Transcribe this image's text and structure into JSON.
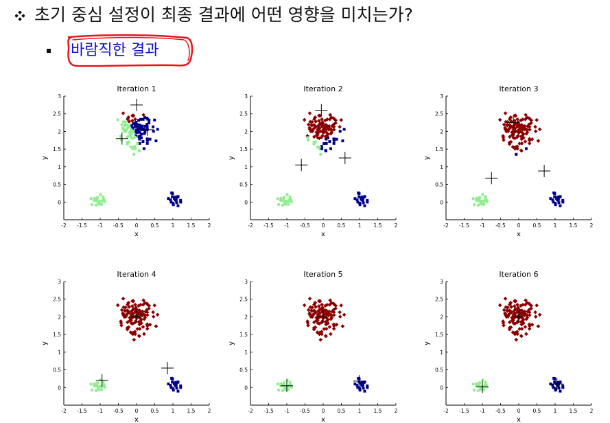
{
  "slide": {
    "heading": "초기 중심 설정이 최종 결과에 어떤 영향을 미치는가?",
    "subheading": "바람직한 결과",
    "bullet_icon": "diamond-cluster-icon"
  },
  "colors": {
    "red": "#8b0000",
    "blue": "#00008b",
    "green": "#90ee90",
    "centroid": "#000000",
    "highlight": "#e8141c",
    "subtext": "#1212cc"
  },
  "chart_data": [
    {
      "type": "scatter",
      "title": "Iteration 1",
      "xlabel": "x",
      "ylabel": "y",
      "xlim": [
        -2,
        2
      ],
      "ylim": [
        -0.5,
        3
      ],
      "centroids": [
        [
          0.0,
          2.75
        ],
        [
          0.3,
          2.05
        ],
        [
          -0.4,
          1.8
        ]
      ],
      "assign": {
        "mode": "nearest"
      }
    },
    {
      "type": "scatter",
      "title": "Iteration 2",
      "xlabel": "x",
      "ylabel": "y",
      "xlim": [
        -2,
        2
      ],
      "ylim": [
        -0.5,
        3
      ],
      "centroids": [
        [
          -0.05,
          2.6
        ],
        [
          0.6,
          1.25
        ],
        [
          -0.6,
          1.05
        ]
      ],
      "assign": {
        "mode": "nearest"
      }
    },
    {
      "type": "scatter",
      "title": "Iteration 3",
      "xlabel": "x",
      "ylabel": "y",
      "xlim": [
        -2,
        2
      ],
      "ylim": [
        -0.5,
        3
      ],
      "centroids": [
        [
          -0.15,
          2.25
        ],
        [
          0.7,
          0.88
        ],
        [
          -0.75,
          0.68
        ]
      ],
      "assign": {
        "mode": "nearest"
      }
    },
    {
      "type": "scatter",
      "title": "Iteration 4",
      "xlabel": "x",
      "ylabel": "y",
      "xlim": [
        -2,
        2
      ],
      "ylim": [
        -0.5,
        3
      ],
      "centroids": [
        [
          0.0,
          2.0
        ],
        [
          0.85,
          0.55
        ],
        [
          -0.95,
          0.2
        ]
      ],
      "assign": {
        "mode": "clusters"
      }
    },
    {
      "type": "scatter",
      "title": "Iteration 5",
      "xlabel": "x",
      "ylabel": "y",
      "xlim": [
        -2,
        2
      ],
      "ylim": [
        -0.5,
        3
      ],
      "centroids": [
        [
          0.0,
          2.0
        ],
        [
          1.0,
          0.18
        ],
        [
          -1.0,
          0.05
        ]
      ],
      "assign": {
        "mode": "clusters"
      }
    },
    {
      "type": "scatter",
      "title": "Iteration 6",
      "xlabel": "x",
      "ylabel": "y",
      "xlim": [
        -2,
        2
      ],
      "ylim": [
        -0.5,
        3
      ],
      "centroids": [
        [
          0.0,
          2.0
        ],
        [
          1.05,
          0.1
        ],
        [
          -1.0,
          0.02
        ]
      ],
      "assign": {
        "mode": "clusters"
      }
    }
  ]
}
